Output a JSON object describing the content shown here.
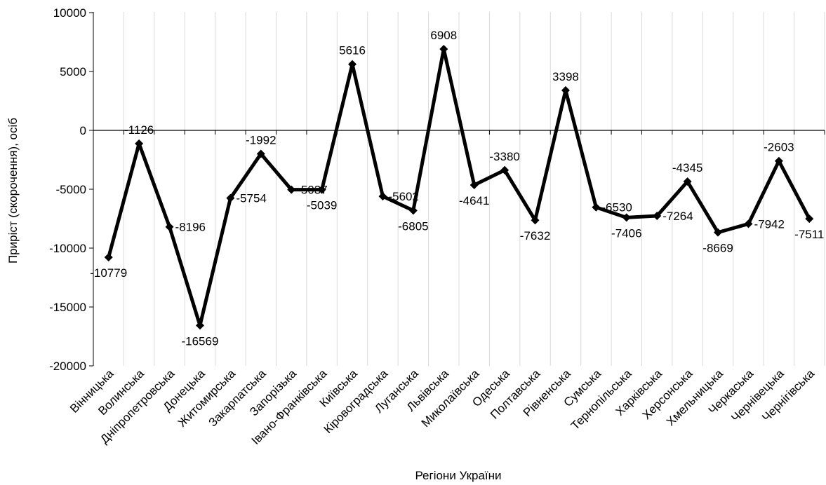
{
  "chart_data": {
    "type": "line",
    "title": "",
    "xlabel": "Регіони України",
    "ylabel": "Приріст (скорочення), осіб",
    "ylim": [
      -20000,
      10000
    ],
    "yticks": [
      10000,
      5000,
      0,
      -5000,
      -10000,
      -15000,
      -20000
    ],
    "ytick_labels": [
      "10000",
      "5000",
      "0",
      "-5000",
      "-10000",
      "-15000",
      "-20000"
    ],
    "grid": "vertical",
    "legend": "none",
    "line_color": "#000000",
    "marker": "diamond",
    "categories": [
      "Вінницька",
      "Волинська",
      "Дніпропетровська",
      "Донецька",
      "Житомирська",
      "Закарпатська",
      "Запорізька",
      "Івано-Франківська",
      "Київська",
      "Кіровоградська",
      "Луганська",
      "Львівська",
      "Миколаївська",
      "Одеська",
      "Полтавська",
      "Рівненська",
      "Сумська",
      "Тернопільська",
      "Харківська",
      "Херсонська",
      "Хмельницька",
      "Черкаська",
      "Чернівецька",
      "Чернігівська"
    ],
    "values": [
      -10779,
      -1126,
      -8196,
      -16569,
      -5754,
      -1992,
      -5037,
      -5039,
      5616,
      -5602,
      -6805,
      6908,
      -4641,
      -3380,
      -7632,
      3398,
      -6530,
      -7406,
      -7264,
      -4345,
      -8669,
      -7942,
      -2603,
      -7511
    ],
    "data_labels": [
      "-10779",
      "-1126",
      "-8196",
      "-16569",
      "-5754",
      "-1992",
      "-5037",
      "-5039",
      "5616",
      "-5602",
      "-6805",
      "6908",
      "-4641",
      "-3380",
      "-7632",
      "3398",
      "-6530",
      "-7406",
      "-7264",
      "-4345",
      "-8669",
      "-7942",
      "-2603",
      "-7511"
    ]
  }
}
